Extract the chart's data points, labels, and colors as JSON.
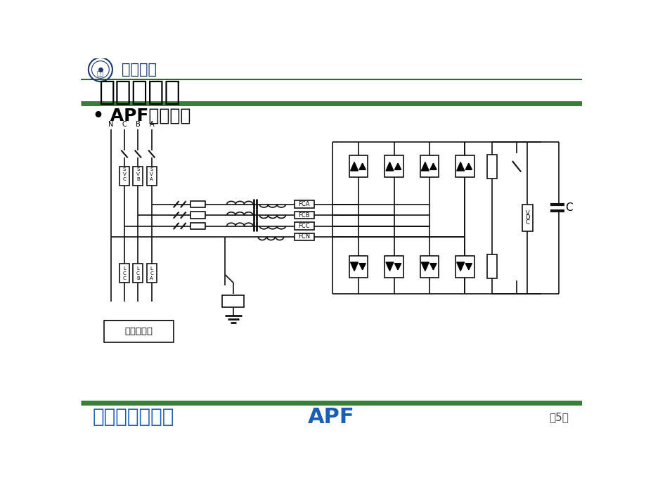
{
  "title": "二、主电路",
  "subtitle": "• APF主电路图",
  "footer_left": "有源电力滤波器",
  "footer_center": "APF",
  "footer_right": "第5页",
  "university_name": "安徽大学",
  "bg_color": "#ffffff",
  "title_color": "#000000",
  "footer_color": "#1a5fb4",
  "footer_right_color": "#444444",
  "green_thick_color": "#3a7d3a",
  "green_thin_color": "#2d6a2d",
  "circuit_color": "#111111",
  "load_label": "非线性负荷",
  "vdc_label": "VDC",
  "cap_label": "C",
  "fuse_labels": [
    "FCA",
    "FCB",
    "FCC",
    "FCN"
  ],
  "phase_labels": [
    "N",
    "C",
    "B",
    "A"
  ],
  "sv_labels": [
    "SVC",
    "SVB",
    "SVA"
  ],
  "ct_labels": [
    "LCC",
    "LCB",
    "LCA"
  ]
}
